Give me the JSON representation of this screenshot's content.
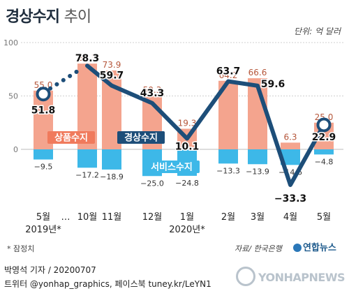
{
  "header": {
    "title_bold": "경상수지",
    "title_light": "추이",
    "unit": "단위: 억 달러"
  },
  "chart_data": {
    "type": "bar+line",
    "categories": [
      "5월",
      "10월",
      "11월",
      "12월",
      "1월",
      "2월",
      "3월",
      "4월",
      "5월"
    ],
    "year_labels": [
      "2019년*",
      "",
      "",
      "",
      "2020년*",
      "",
      "",
      "",
      ""
    ],
    "break_label": "…",
    "ylim": [
      -40,
      100
    ],
    "yticks": [
      0,
      50,
      100
    ],
    "series": [
      {
        "name": "상품수지",
        "kind": "bar",
        "color": "#f4a48e",
        "label_color": "#b5563a",
        "values": [
          55.0,
          80.3,
          73.9,
          50.3,
          19.3,
          64.2,
          66.6,
          6.3,
          25.0
        ],
        "value_labels": [
          "55.0",
          "80.3",
          "73.9",
          "50.3",
          "19.3",
          "64.2",
          "66.6",
          "6.3",
          "25.0"
        ]
      },
      {
        "name": "서비스수지",
        "kind": "bar",
        "color": "#3db8e8",
        "label_color": "#333333",
        "values": [
          -9.5,
          -17.2,
          -18.9,
          -25.0,
          -24.8,
          -13.3,
          -13.9,
          -14.6,
          -4.8
        ],
        "value_labels": [
          "−9.5",
          "−17.2",
          "−18.9",
          "−25.0",
          "−24.8",
          "−13.3",
          "−13.9",
          "−14.6",
          "−4.8"
        ]
      },
      {
        "name": "경상수지",
        "kind": "line",
        "color": "#1d4e79",
        "label_color": "#111111",
        "values": [
          51.8,
          78.3,
          59.7,
          43.3,
          10.1,
          63.7,
          59.6,
          -33.3,
          22.9
        ],
        "value_labels": [
          "51.8",
          "78.3",
          "59.7",
          "43.3",
          "10.1",
          "63.7",
          "59.6",
          "−33.3",
          "22.9"
        ]
      }
    ],
    "legend": [
      {
        "text": "상품수지",
        "bg": "#f07a5c"
      },
      {
        "text": "경상수지",
        "bg": "#1d4e79"
      },
      {
        "text": "서비스수지",
        "bg": "#3db8e8"
      }
    ]
  },
  "footer": {
    "footnote": "* 잠정치",
    "source": "자료/ 한국은행",
    "brand": "연합뉴스",
    "credit_line1": "박영석 기자 / 20200707",
    "credit_line2": "트위터 @yonhap_graphics, 페이스북 tuney.kr/LeYN1",
    "watermark": "YONHAPNEWS"
  }
}
